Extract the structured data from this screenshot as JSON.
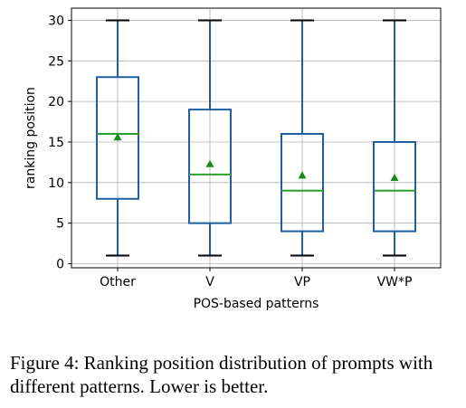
{
  "chart_data": {
    "type": "box",
    "categories": [
      "Other",
      "V",
      "VP",
      "VW*P"
    ],
    "boxes": [
      {
        "category": "Other",
        "whislo": 1,
        "q1": 8,
        "median": 16,
        "q3": 23,
        "whishi": 30,
        "mean": 15.6
      },
      {
        "category": "V",
        "whislo": 1,
        "q1": 5,
        "median": 11,
        "q3": 19,
        "whishi": 30,
        "mean": 12.3
      },
      {
        "category": "VP",
        "whislo": 1,
        "q1": 4,
        "median": 9,
        "q3": 16,
        "whishi": 30,
        "mean": 10.9
      },
      {
        "category": "VW*P",
        "whislo": 1,
        "q1": 4,
        "median": 9,
        "q3": 15,
        "whishi": 30,
        "mean": 10.6
      }
    ],
    "xlabel": "POS-based patterns",
    "ylabel": "ranking position",
    "ylim": [
      -0.5,
      31.5
    ],
    "yticks": [
      0,
      5,
      10,
      15,
      20,
      25,
      30
    ],
    "grid": true,
    "colors": {
      "box": "#1f5f9e",
      "median": "#2ca02c",
      "mean": "#1a8a1a",
      "grid": "#b0b0b0"
    }
  },
  "caption": "Figure 4: Ranking position distribution of prompts with different patterns. Lower is better."
}
